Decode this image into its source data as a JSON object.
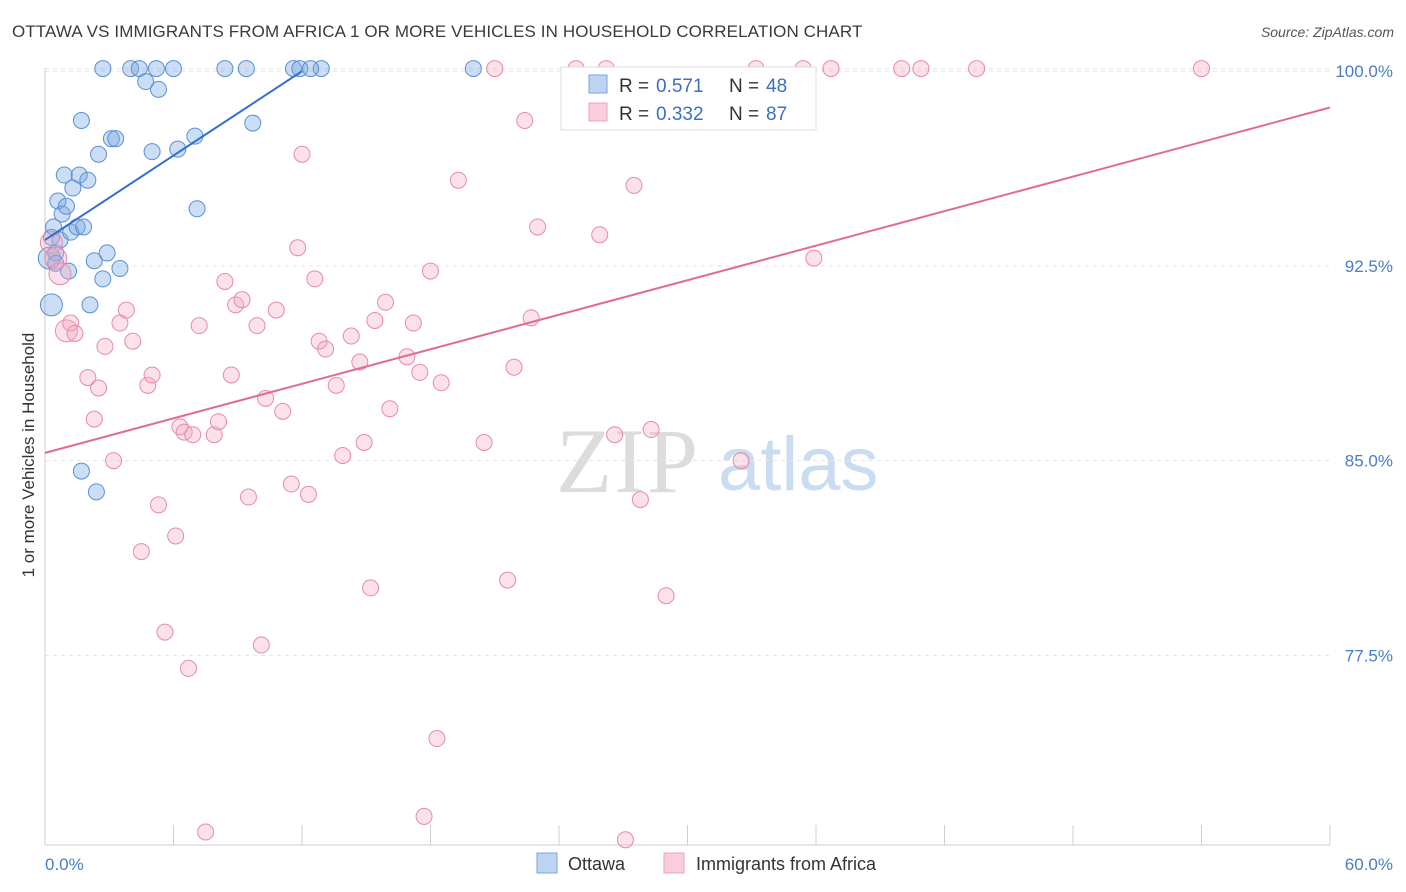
{
  "title": "OTTAWA VS IMMIGRANTS FROM AFRICA 1 OR MORE VEHICLES IN HOUSEHOLD CORRELATION CHART",
  "source": "Source: ZipAtlas.com",
  "watermark": {
    "zip": "ZIP",
    "atlas": "atlas"
  },
  "chart_data": {
    "type": "scatter",
    "title": "OTTAWA VS IMMIGRANTS FROM AFRICA 1 OR MORE VEHICLES IN HOUSEHOLD CORRELATION CHART",
    "xlabel": "",
    "ylabel": "1 or more Vehicles in Household",
    "xlim": [
      0,
      60
    ],
    "ylim": [
      70.2,
      101.2
    ],
    "x_tick_labels": [
      "0.0%",
      "60.0%"
    ],
    "y_ticks": [
      77.5,
      85.0,
      92.5,
      100.0
    ],
    "y_tick_labels": [
      "77.5%",
      "85.0%",
      "92.5%",
      "100.0%"
    ],
    "grid": "horizontal dashed",
    "legend_position": "top-center",
    "series": [
      {
        "name": "Ottawa",
        "color": "#7aa7e0",
        "stroke": "#5b8fd6",
        "line_color": "#2f6fd0",
        "R": "0.571",
        "N": "48",
        "trend": {
          "x": [
            0.0,
            12.0
          ],
          "y": [
            93.5,
            100.0
          ]
        },
        "points": [
          [
            0.2,
            92.8
          ],
          [
            0.3,
            91.0
          ],
          [
            0.3,
            93.6
          ],
          [
            0.4,
            94.0
          ],
          [
            0.5,
            93.0
          ],
          [
            0.5,
            92.6
          ],
          [
            0.6,
            95.0
          ],
          [
            0.7,
            93.5
          ],
          [
            0.8,
            94.5
          ],
          [
            0.9,
            96.0
          ],
          [
            1.0,
            94.8
          ],
          [
            1.1,
            92.3
          ],
          [
            1.2,
            93.8
          ],
          [
            1.3,
            95.5
          ],
          [
            1.5,
            94.0
          ],
          [
            1.6,
            96.0
          ],
          [
            1.7,
            98.1
          ],
          [
            1.8,
            94.0
          ],
          [
            2.0,
            95.8
          ],
          [
            2.1,
            91.0
          ],
          [
            2.3,
            92.7
          ],
          [
            2.5,
            96.8
          ],
          [
            2.7,
            92.0
          ],
          [
            2.9,
            93.0
          ],
          [
            3.1,
            97.4
          ],
          [
            3.3,
            97.4
          ],
          [
            3.5,
            92.4
          ],
          [
            2.4,
            83.8
          ],
          [
            1.7,
            84.6
          ],
          [
            2.7,
            100.1
          ],
          [
            4.0,
            100.1
          ],
          [
            4.4,
            100.1
          ],
          [
            4.7,
            99.6
          ],
          [
            5.2,
            100.1
          ],
          [
            6.0,
            100.1
          ],
          [
            5.0,
            96.9
          ],
          [
            5.3,
            99.3
          ],
          [
            6.2,
            97.0
          ],
          [
            7.0,
            97.5
          ],
          [
            7.1,
            94.7
          ],
          [
            8.4,
            100.1
          ],
          [
            9.4,
            100.1
          ],
          [
            9.7,
            98.0
          ],
          [
            11.6,
            100.1
          ],
          [
            11.9,
            100.1
          ],
          [
            12.9,
            100.1
          ],
          [
            20.0,
            100.1
          ],
          [
            12.4,
            100.1
          ]
        ]
      },
      {
        "name": "Immigrants from Africa",
        "color": "#f4a9c0",
        "stroke": "#e88aab",
        "line_color": "#e06c95",
        "R": "0.332",
        "N": "87",
        "trend": {
          "x": [
            0.0,
            60.0
          ],
          "y": [
            85.3,
            98.6
          ]
        },
        "points": [
          [
            0.3,
            93.4
          ],
          [
            0.5,
            92.8
          ],
          [
            0.7,
            92.2
          ],
          [
            1.0,
            90.0
          ],
          [
            1.2,
            90.3
          ],
          [
            1.4,
            89.9
          ],
          [
            2.0,
            88.2
          ],
          [
            2.3,
            86.6
          ],
          [
            2.5,
            87.8
          ],
          [
            2.8,
            89.4
          ],
          [
            3.2,
            85.0
          ],
          [
            3.5,
            90.3
          ],
          [
            3.8,
            90.8
          ],
          [
            4.1,
            89.6
          ],
          [
            4.5,
            81.5
          ],
          [
            4.8,
            87.9
          ],
          [
            5.0,
            88.3
          ],
          [
            5.3,
            83.3
          ],
          [
            5.6,
            78.4
          ],
          [
            6.1,
            82.1
          ],
          [
            6.3,
            86.3
          ],
          [
            6.5,
            86.1
          ],
          [
            6.7,
            77.0
          ],
          [
            6.9,
            86.0
          ],
          [
            7.2,
            90.2
          ],
          [
            7.5,
            70.7
          ],
          [
            7.9,
            86.0
          ],
          [
            8.1,
            86.5
          ],
          [
            8.4,
            91.9
          ],
          [
            8.7,
            88.3
          ],
          [
            8.9,
            91.0
          ],
          [
            9.2,
            91.2
          ],
          [
            9.5,
            83.6
          ],
          [
            9.9,
            90.2
          ],
          [
            10.1,
            77.9
          ],
          [
            10.3,
            87.4
          ],
          [
            10.8,
            90.8
          ],
          [
            11.1,
            86.9
          ],
          [
            11.5,
            84.1
          ],
          [
            11.8,
            93.2
          ],
          [
            12.0,
            96.8
          ],
          [
            12.3,
            83.7
          ],
          [
            12.6,
            92.0
          ],
          [
            12.8,
            89.6
          ],
          [
            13.1,
            89.3
          ],
          [
            13.6,
            87.9
          ],
          [
            13.9,
            85.2
          ],
          [
            14.3,
            89.8
          ],
          [
            14.7,
            88.8
          ],
          [
            14.9,
            85.7
          ],
          [
            15.2,
            80.1
          ],
          [
            15.4,
            90.4
          ],
          [
            15.9,
            91.1
          ],
          [
            16.1,
            87.0
          ],
          [
            16.9,
            89.0
          ],
          [
            17.2,
            90.3
          ],
          [
            17.5,
            88.4
          ],
          [
            17.7,
            71.3
          ],
          [
            18.0,
            92.3
          ],
          [
            18.3,
            74.3
          ],
          [
            18.5,
            88.0
          ],
          [
            19.3,
            95.8
          ],
          [
            20.5,
            85.7
          ],
          [
            21.0,
            100.1
          ],
          [
            21.6,
            80.4
          ],
          [
            21.9,
            88.6
          ],
          [
            22.4,
            98.1
          ],
          [
            22.7,
            90.5
          ],
          [
            23.0,
            94.0
          ],
          [
            24.8,
            100.1
          ],
          [
            25.9,
            93.7
          ],
          [
            26.2,
            100.1
          ],
          [
            26.6,
            86.0
          ],
          [
            27.1,
            70.4
          ],
          [
            27.5,
            95.6
          ],
          [
            27.8,
            83.5
          ],
          [
            28.3,
            86.2
          ],
          [
            29.0,
            79.8
          ],
          [
            32.5,
            85.0
          ],
          [
            33.2,
            100.1
          ],
          [
            35.4,
            100.1
          ],
          [
            35.9,
            92.8
          ],
          [
            36.7,
            100.1
          ],
          [
            40.0,
            100.1
          ],
          [
            40.9,
            100.1
          ],
          [
            43.5,
            100.1
          ],
          [
            54.0,
            100.1
          ]
        ]
      }
    ]
  },
  "legend": {
    "r_label": "R =",
    "n_label": "N ="
  },
  "bottom_legend": [
    "Ottawa",
    "Immigrants from Africa"
  ]
}
